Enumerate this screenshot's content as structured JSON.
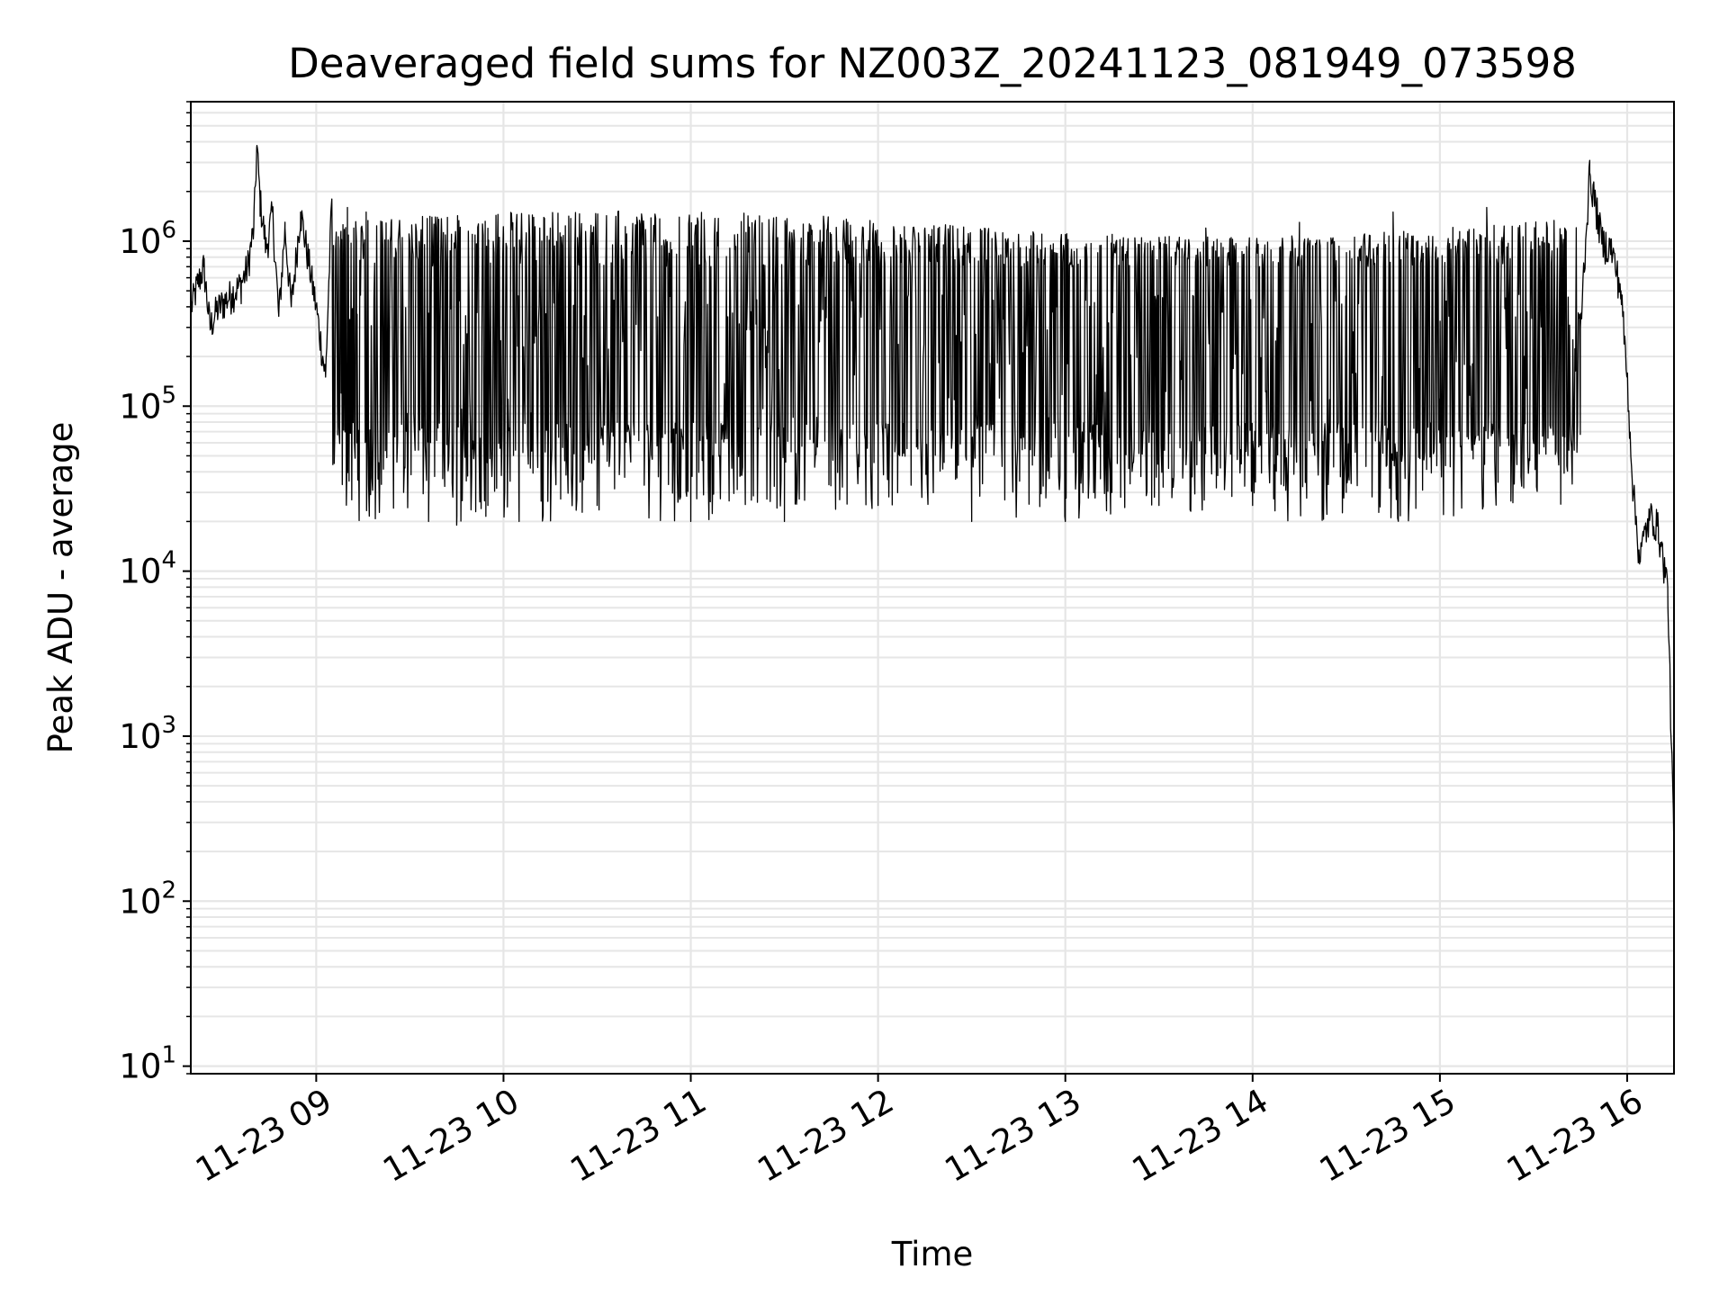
{
  "chart_data": {
    "type": "line",
    "title": "Deaveraged field sums for NZ003Z_20241123_081949_073598",
    "xlabel": "Time",
    "ylabel": "Peak ADU - average",
    "y_scale": "log",
    "ylim": [
      9,
      7000000
    ],
    "xlim": [
      "2024-11-23 08:19:49",
      "2024-11-23 16:15:00"
    ],
    "grid": true,
    "line_color": "#000000",
    "grid_color": "#e6e6e6",
    "x_ticks": [
      {
        "label": "11-23 09",
        "value": "2024-11-23 09:00"
      },
      {
        "label": "11-23 10",
        "value": "2024-11-23 10:00"
      },
      {
        "label": "11-23 11",
        "value": "2024-11-23 11:00"
      },
      {
        "label": "11-23 12",
        "value": "2024-11-23 12:00"
      },
      {
        "label": "11-23 13",
        "value": "2024-11-23 13:00"
      },
      {
        "label": "11-23 14",
        "value": "2024-11-23 14:00"
      },
      {
        "label": "11-23 15",
        "value": "2024-11-23 15:00"
      },
      {
        "label": "11-23 16",
        "value": "2024-11-23 16:00"
      }
    ],
    "y_ticks": [
      {
        "base": "10",
        "exp": "1",
        "value": 10
      },
      {
        "base": "10",
        "exp": "2",
        "value": 100
      },
      {
        "base": "10",
        "exp": "3",
        "value": 1000
      },
      {
        "base": "10",
        "exp": "4",
        "value": 10000
      },
      {
        "base": "10",
        "exp": "5",
        "value": 100000
      },
      {
        "base": "10",
        "exp": "6",
        "value": 1000000
      }
    ],
    "series": [
      {
        "points": [
          [
            "2024-11-23 08:20",
            400000
          ],
          [
            "2024-11-23 08:22",
            550000
          ],
          [
            "2024-11-23 08:24",
            700000
          ],
          [
            "2024-11-23 08:26",
            300000
          ],
          [
            "2024-11-23 08:28",
            380000
          ],
          [
            "2024-11-23 08:30",
            420000
          ],
          [
            "2024-11-23 08:33",
            480000
          ],
          [
            "2024-11-23 08:36",
            550000
          ],
          [
            "2024-11-23 08:38",
            700000
          ],
          [
            "2024-11-23 08:40",
            1200000
          ],
          [
            "2024-11-23 08:41",
            3800000
          ],
          [
            "2024-11-23 08:42",
            1800000
          ],
          [
            "2024-11-23 08:44",
            900000
          ],
          [
            "2024-11-23 08:46",
            1500000
          ],
          [
            "2024-11-23 08:48",
            350000
          ],
          [
            "2024-11-23 08:50",
            1200000
          ],
          [
            "2024-11-23 08:52",
            400000
          ],
          [
            "2024-11-23 08:55",
            1500000
          ],
          [
            "2024-11-23 09:00",
            400000
          ],
          [
            "2024-11-23 09:03",
            150000
          ],
          [
            "2024-11-23 09:05",
            1800000
          ],
          [
            "2024-11-23 09:08",
            120000
          ],
          [
            "2024-11-23 09:10",
            1600000
          ],
          [
            "2024-11-23 09:13",
            60000
          ],
          [
            "2024-11-23 09:16",
            1500000
          ],
          [
            "2024-11-23 09:20",
            40000
          ],
          [
            "2024-11-23 09:24",
            1300000
          ],
          [
            "2024-11-23 09:28",
            30000
          ],
          [
            "2024-11-23 09:32",
            1200000
          ],
          [
            "2024-11-23 09:36",
            20000
          ],
          [
            "2024-11-23 09:40",
            1100000
          ],
          [
            "2024-11-23 09:45",
            19000
          ],
          [
            "2024-11-23 09:50",
            1100000
          ],
          [
            "2024-11-23 09:55",
            25000
          ],
          [
            "2024-11-23 10:00",
            1100000
          ],
          [
            "2024-11-23 10:05",
            20000
          ],
          [
            "2024-11-23 10:15",
            1200000
          ],
          [
            "2024-11-23 10:30",
            25000
          ],
          [
            "2024-11-23 10:45",
            1100000
          ],
          [
            "2024-11-23 11:00",
            20000
          ],
          [
            "2024-11-23 11:15",
            1100000
          ],
          [
            "2024-11-23 11:30",
            20000
          ],
          [
            "2024-11-23 11:45",
            1100000
          ],
          [
            "2024-11-23 12:00",
            25000
          ],
          [
            "2024-11-23 12:15",
            1200000
          ],
          [
            "2024-11-23 12:30",
            20000
          ],
          [
            "2024-11-23 12:45",
            1100000
          ],
          [
            "2024-11-23 13:00",
            20000
          ],
          [
            "2024-11-23 13:15",
            1100000
          ],
          [
            "2024-11-23 13:30",
            25000
          ],
          [
            "2024-11-23 13:45",
            1200000
          ],
          [
            "2024-11-23 14:00",
            25000
          ],
          [
            "2024-11-23 14:15",
            1300000
          ],
          [
            "2024-11-23 14:30",
            30000
          ],
          [
            "2024-11-23 14:45",
            1500000
          ],
          [
            "2024-11-23 15:00",
            60000
          ],
          [
            "2024-11-23 15:15",
            1600000
          ],
          [
            "2024-11-23 15:30",
            60000
          ],
          [
            "2024-11-23 15:40",
            1200000
          ],
          [
            "2024-11-23 15:45",
            300000
          ],
          [
            "2024-11-23 15:48",
            2600000
          ],
          [
            "2024-11-23 15:52",
            1000000
          ],
          [
            "2024-11-23 15:55",
            900000
          ],
          [
            "2024-11-23 15:58",
            500000
          ],
          [
            "2024-11-23 16:00",
            150000
          ],
          [
            "2024-11-23 16:02",
            30000
          ],
          [
            "2024-11-23 16:04",
            12000
          ],
          [
            "2024-11-23 16:06",
            18000
          ],
          [
            "2024-11-23 16:08",
            22000
          ],
          [
            "2024-11-23 16:10",
            18000
          ],
          [
            "2024-11-23 16:13",
            8000
          ],
          [
            "2024-11-23 16:15",
            200
          ]
        ]
      }
    ]
  }
}
